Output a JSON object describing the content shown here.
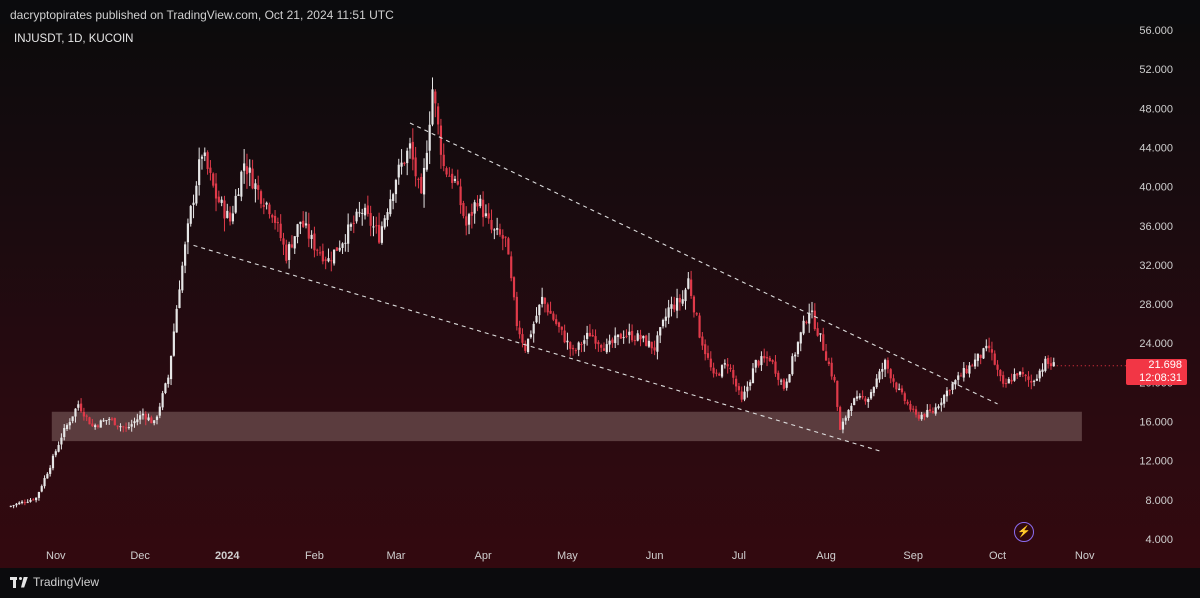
{
  "header": {
    "publisher": "dacryptopirates published on TradingView.com, Oct 21, 2024 11:51 UTC"
  },
  "symbol": {
    "label": "INJUSDT, 1D, KUCOIN"
  },
  "price_tag": {
    "price": "21.698",
    "countdown": "12:08:31",
    "color": "#f23645"
  },
  "footer": {
    "brand": "TradingView"
  },
  "icons": {
    "logo": "tradingview-logo-icon",
    "bolt": "lightning-bolt-icon"
  },
  "colors": {
    "up": "#e6e6e6",
    "down": "#e03a4a",
    "zone": "#6e5050",
    "trendline": "#dcdcdc"
  },
  "chart_data": {
    "type": "candlestick",
    "symbol": "INJUSDT",
    "interval": "1D",
    "exchange": "KUCOIN",
    "x_start": "2023-10-15",
    "x_end": "2024-11-10",
    "ylim": [
      4,
      56
    ],
    "y_ticks": [
      "56.000",
      "52.000",
      "48.000",
      "44.000",
      "40.000",
      "36.000",
      "32.000",
      "28.000",
      "24.000",
      "20.000",
      "16.000",
      "12.000",
      "8.000",
      "4.000"
    ],
    "x_ticks": [
      {
        "label": "Nov",
        "date": "2023-11-01"
      },
      {
        "label": "Dec",
        "date": "2023-12-01"
      },
      {
        "label": "2024",
        "date": "2024-01-01",
        "bold": true
      },
      {
        "label": "Feb",
        "date": "2024-02-01"
      },
      {
        "label": "Mar",
        "date": "2024-03-01"
      },
      {
        "label": "Apr",
        "date": "2024-04-01"
      },
      {
        "label": "May",
        "date": "2024-05-01"
      },
      {
        "label": "Jun",
        "date": "2024-06-01"
      },
      {
        "label": "Jul",
        "date": "2024-07-01"
      },
      {
        "label": "Aug",
        "date": "2024-08-01"
      },
      {
        "label": "Sep",
        "date": "2024-09-01"
      },
      {
        "label": "Oct",
        "date": "2024-10-01"
      },
      {
        "label": "Nov",
        "date": "2024-11-01"
      }
    ],
    "close_path": [
      [
        "2023-10-15",
        7.3
      ],
      [
        "2023-10-25",
        8.2
      ],
      [
        "2023-10-30",
        11.5
      ],
      [
        "2023-11-03",
        14.5
      ],
      [
        "2023-11-09",
        17.8
      ],
      [
        "2023-11-14",
        15.5
      ],
      [
        "2023-11-20",
        16.3
      ],
      [
        "2023-11-26",
        15.2
      ],
      [
        "2023-12-02",
        16.8
      ],
      [
        "2023-12-06",
        15.8
      ],
      [
        "2023-12-11",
        20.5
      ],
      [
        "2023-12-15",
        30.0
      ],
      [
        "2023-12-19",
        37.5
      ],
      [
        "2023-12-23",
        43.5
      ],
      [
        "2023-12-28",
        39.0
      ],
      [
        "2024-01-02",
        36.5
      ],
      [
        "2024-01-07",
        42.5
      ],
      [
        "2024-01-12",
        39.5
      ],
      [
        "2024-01-17",
        37.5
      ],
      [
        "2024-01-22",
        33.0
      ],
      [
        "2024-01-27",
        36.5
      ],
      [
        "2024-02-01",
        34.0
      ],
      [
        "2024-02-06",
        32.5
      ],
      [
        "2024-02-12",
        35.0
      ],
      [
        "2024-02-18",
        37.5
      ],
      [
        "2024-02-24",
        35.0
      ],
      [
        "2024-03-01",
        41.0
      ],
      [
        "2024-03-06",
        44.0
      ],
      [
        "2024-03-10",
        38.5
      ],
      [
        "2024-03-14",
        50.0
      ],
      [
        "2024-03-18",
        42.0
      ],
      [
        "2024-03-22",
        40.5
      ],
      [
        "2024-03-26",
        36.0
      ],
      [
        "2024-03-30",
        38.8
      ],
      [
        "2024-04-04",
        35.5
      ],
      [
        "2024-04-09",
        34.5
      ],
      [
        "2024-04-13",
        26.0
      ],
      [
        "2024-04-16",
        23.5
      ],
      [
        "2024-04-22",
        28.5
      ],
      [
        "2024-04-28",
        25.5
      ],
      [
        "2024-05-03",
        23.0
      ],
      [
        "2024-05-09",
        25.0
      ],
      [
        "2024-05-15",
        23.5
      ],
      [
        "2024-05-21",
        25.0
      ],
      [
        "2024-05-27",
        24.5
      ],
      [
        "2024-06-01",
        23.5
      ],
      [
        "2024-06-06",
        27.5
      ],
      [
        "2024-06-11",
        28.5
      ],
      [
        "2024-06-13",
        30.5
      ],
      [
        "2024-06-17",
        25.0
      ],
      [
        "2024-06-22",
        20.5
      ],
      [
        "2024-06-27",
        22.0
      ],
      [
        "2024-07-02",
        18.0
      ],
      [
        "2024-07-07",
        22.0
      ],
      [
        "2024-07-12",
        22.5
      ],
      [
        "2024-07-17",
        19.5
      ],
      [
        "2024-07-22",
        24.0
      ],
      [
        "2024-07-26",
        27.5
      ],
      [
        "2024-07-30",
        24.5
      ],
      [
        "2024-08-04",
        20.0
      ],
      [
        "2024-08-06",
        15.0
      ],
      [
        "2024-08-10",
        18.0
      ],
      [
        "2024-08-16",
        18.5
      ],
      [
        "2024-08-22",
        22.0
      ],
      [
        "2024-08-27",
        19.0
      ],
      [
        "2024-09-02",
        16.5
      ],
      [
        "2024-09-08",
        17.0
      ],
      [
        "2024-09-14",
        19.5
      ],
      [
        "2024-09-19",
        21.0
      ],
      [
        "2024-09-24",
        22.5
      ],
      [
        "2024-09-28",
        23.5
      ],
      [
        "2024-10-03",
        19.5
      ],
      [
        "2024-10-08",
        21.0
      ],
      [
        "2024-10-13",
        20.0
      ],
      [
        "2024-10-18",
        22.0
      ],
      [
        "2024-10-21",
        21.7
      ]
    ],
    "annotations": {
      "support_zone": {
        "from": "2023-11-01",
        "to": "2024-10-31",
        "low": 14.0,
        "high": 17.0
      },
      "upper_trendline": {
        "start": [
          "2024-03-06",
          46.5
        ],
        "end": [
          "2024-10-01",
          17.8
        ]
      },
      "lower_trendline": {
        "start": [
          "2023-12-20",
          34.0
        ],
        "end": [
          "2024-08-20",
          13.0
        ]
      }
    },
    "last_price": 21.698
  }
}
